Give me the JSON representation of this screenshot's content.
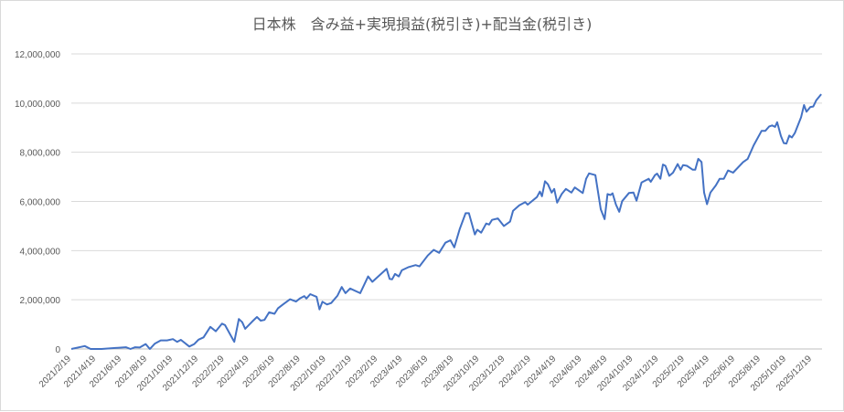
{
  "chart_data": {
    "type": "line",
    "title": "日本株　含み益+実現損益(税引き)+配当金(税引き)",
    "xlabel": "",
    "ylabel": "",
    "ylim": [
      0,
      12000000
    ],
    "yticks": [
      "0",
      "2,000,000",
      "4,000,000",
      "6,000,000",
      "8,000,000",
      "10,000,000",
      "12,000,000"
    ],
    "yticks_values": [
      0,
      2000000,
      4000000,
      6000000,
      8000000,
      10000000,
      12000000
    ],
    "xticks": [
      "2021/2/19",
      "2021/4/19",
      "2021/6/19",
      "2021/8/19",
      "2021/10/19",
      "2021/12/19",
      "2022/2/19",
      "2022/4/19",
      "2022/6/19",
      "2022/8/19",
      "2022/10/19",
      "2022/12/19",
      "2023/2/19",
      "2023/4/19",
      "2023/6/19",
      "2023/8/19",
      "2023/10/19",
      "2023/12/19",
      "2024/2/19",
      "2024/4/19",
      "2024/6/19",
      "2024/8/19",
      "2024/10/19",
      "2024/12/19",
      "2025/2/19",
      "2025/4/19",
      "2025/6/19",
      "2025/8/19",
      "2025/10/19",
      "2025/12/19"
    ],
    "grid": true,
    "legend": "none",
    "line_color": "#4472C4",
    "series": [
      {
        "points": [
          [
            "2021-02-19",
            0
          ],
          [
            "2021-03-23",
            120000
          ],
          [
            "2021-04-06",
            0
          ],
          [
            "2021-05-02",
            0
          ],
          [
            "2021-06-29",
            70000
          ],
          [
            "2021-07-10",
            0
          ],
          [
            "2021-07-21",
            70000
          ],
          [
            "2021-08-01",
            60000
          ],
          [
            "2021-08-15",
            200000
          ],
          [
            "2021-08-25",
            0
          ],
          [
            "2021-09-06",
            220000
          ],
          [
            "2021-09-20",
            350000
          ],
          [
            "2021-10-05",
            350000
          ],
          [
            "2021-10-19",
            400000
          ],
          [
            "2021-10-29",
            290000
          ],
          [
            "2021-11-07",
            370000
          ],
          [
            "2021-11-27",
            100000
          ],
          [
            "2021-12-09",
            200000
          ],
          [
            "2021-12-19",
            380000
          ],
          [
            "2021-12-31",
            470000
          ],
          [
            "2022-01-16",
            900000
          ],
          [
            "2022-01-29",
            720000
          ],
          [
            "2022-02-13",
            1030000
          ],
          [
            "2022-02-20",
            970000
          ],
          [
            "2022-03-14",
            290000
          ],
          [
            "2022-03-25",
            1220000
          ],
          [
            "2022-04-02",
            1090000
          ],
          [
            "2022-04-09",
            820000
          ],
          [
            "2022-04-26",
            1120000
          ],
          [
            "2022-05-07",
            1300000
          ],
          [
            "2022-05-16",
            1150000
          ],
          [
            "2022-05-25",
            1180000
          ],
          [
            "2022-06-05",
            1490000
          ],
          [
            "2022-06-18",
            1430000
          ],
          [
            "2022-06-26",
            1650000
          ],
          [
            "2022-07-08",
            1810000
          ],
          [
            "2022-07-25",
            2020000
          ],
          [
            "2022-08-08",
            1930000
          ],
          [
            "2022-08-17",
            2050000
          ],
          [
            "2022-08-28",
            2150000
          ],
          [
            "2022-09-02",
            2050000
          ],
          [
            "2022-09-11",
            2230000
          ],
          [
            "2022-09-26",
            2120000
          ],
          [
            "2022-10-03",
            1610000
          ],
          [
            "2022-10-10",
            1920000
          ],
          [
            "2022-10-21",
            1810000
          ],
          [
            "2022-10-31",
            1870000
          ],
          [
            "2022-11-15",
            2170000
          ],
          [
            "2022-11-25",
            2520000
          ],
          [
            "2022-12-04",
            2270000
          ],
          [
            "2022-12-15",
            2460000
          ],
          [
            "2023-01-08",
            2270000
          ],
          [
            "2023-01-27",
            2950000
          ],
          [
            "2023-02-06",
            2730000
          ],
          [
            "2023-03-12",
            3260000
          ],
          [
            "2023-03-19",
            2850000
          ],
          [
            "2023-03-25",
            2830000
          ],
          [
            "2023-04-01",
            3050000
          ],
          [
            "2023-04-10",
            2950000
          ],
          [
            "2023-04-17",
            3200000
          ],
          [
            "2023-05-02",
            3320000
          ],
          [
            "2023-05-20",
            3410000
          ],
          [
            "2023-05-29",
            3360000
          ],
          [
            "2023-06-18",
            3800000
          ],
          [
            "2023-07-02",
            4030000
          ],
          [
            "2023-07-15",
            3910000
          ],
          [
            "2023-07-30",
            4320000
          ],
          [
            "2023-08-11",
            4420000
          ],
          [
            "2023-08-20",
            4130000
          ],
          [
            "2023-09-02",
            4870000
          ],
          [
            "2023-09-16",
            5520000
          ],
          [
            "2023-09-24",
            5520000
          ],
          [
            "2023-10-08",
            4660000
          ],
          [
            "2023-10-14",
            4850000
          ],
          [
            "2023-10-23",
            4730000
          ],
          [
            "2023-11-04",
            5100000
          ],
          [
            "2023-11-11",
            5060000
          ],
          [
            "2023-11-18",
            5250000
          ],
          [
            "2023-12-02",
            5310000
          ],
          [
            "2023-12-16",
            5000000
          ],
          [
            "2023-12-31",
            5180000
          ],
          [
            "2024-01-07",
            5620000
          ],
          [
            "2024-01-22",
            5840000
          ],
          [
            "2024-02-05",
            5970000
          ],
          [
            "2024-02-11",
            5870000
          ],
          [
            "2024-03-04",
            6180000
          ],
          [
            "2024-03-11",
            6400000
          ],
          [
            "2024-03-16",
            6210000
          ],
          [
            "2024-03-23",
            6820000
          ],
          [
            "2024-03-30",
            6700000
          ],
          [
            "2024-04-08",
            6360000
          ],
          [
            "2024-04-14",
            6510000
          ],
          [
            "2024-04-21",
            5950000
          ],
          [
            "2024-05-02",
            6300000
          ],
          [
            "2024-05-12",
            6510000
          ],
          [
            "2024-05-25",
            6360000
          ],
          [
            "2024-06-02",
            6570000
          ],
          [
            "2024-06-21",
            6340000
          ],
          [
            "2024-06-29",
            6920000
          ],
          [
            "2024-07-06",
            7140000
          ],
          [
            "2024-07-21",
            7070000
          ],
          [
            "2024-08-03",
            5680000
          ],
          [
            "2024-08-12",
            5280000
          ],
          [
            "2024-08-19",
            6300000
          ],
          [
            "2024-08-26",
            6260000
          ],
          [
            "2024-08-31",
            6330000
          ],
          [
            "2024-09-08",
            5870000
          ],
          [
            "2024-09-16",
            5580000
          ],
          [
            "2024-09-23",
            6010000
          ],
          [
            "2024-10-09",
            6340000
          ],
          [
            "2024-10-20",
            6360000
          ],
          [
            "2024-10-27",
            6030000
          ],
          [
            "2024-11-08",
            6770000
          ],
          [
            "2024-11-25",
            6920000
          ],
          [
            "2024-11-30",
            6800000
          ],
          [
            "2024-12-10",
            7070000
          ],
          [
            "2024-12-15",
            7130000
          ],
          [
            "2024-12-23",
            6920000
          ],
          [
            "2024-12-29",
            7500000
          ],
          [
            "2025-01-04",
            7450000
          ],
          [
            "2025-01-13",
            7040000
          ],
          [
            "2025-01-22",
            7170000
          ],
          [
            "2025-02-02",
            7520000
          ],
          [
            "2025-02-09",
            7290000
          ],
          [
            "2025-02-15",
            7480000
          ],
          [
            "2025-02-24",
            7450000
          ],
          [
            "2025-03-10",
            7290000
          ],
          [
            "2025-03-16",
            7290000
          ],
          [
            "2025-03-23",
            7730000
          ],
          [
            "2025-03-31",
            7600000
          ],
          [
            "2025-04-06",
            6360000
          ],
          [
            "2025-04-13",
            5890000
          ],
          [
            "2025-04-21",
            6360000
          ],
          [
            "2025-05-04",
            6650000
          ],
          [
            "2025-05-13",
            6920000
          ],
          [
            "2025-05-23",
            6920000
          ],
          [
            "2025-06-02",
            7260000
          ],
          [
            "2025-06-14",
            7170000
          ],
          [
            "2025-07-08",
            7600000
          ],
          [
            "2025-07-19",
            7730000
          ],
          [
            "2025-08-02",
            8280000
          ],
          [
            "2025-08-21",
            8870000
          ],
          [
            "2025-08-30",
            8870000
          ],
          [
            "2025-09-08",
            9050000
          ],
          [
            "2025-09-15",
            9090000
          ],
          [
            "2025-09-22",
            9030000
          ],
          [
            "2025-09-27",
            9220000
          ],
          [
            "2025-10-06",
            8660000
          ],
          [
            "2025-10-13",
            8370000
          ],
          [
            "2025-10-19",
            8350000
          ],
          [
            "2025-10-26",
            8680000
          ],
          [
            "2025-11-01",
            8600000
          ],
          [
            "2025-11-08",
            8780000
          ],
          [
            "2025-11-23",
            9430000
          ],
          [
            "2025-11-30",
            9920000
          ],
          [
            "2025-12-06",
            9650000
          ],
          [
            "2025-12-15",
            9840000
          ],
          [
            "2025-12-22",
            9860000
          ],
          [
            "2025-12-29",
            10110000
          ],
          [
            "2026-01-10",
            10360000
          ]
        ]
      }
    ]
  }
}
